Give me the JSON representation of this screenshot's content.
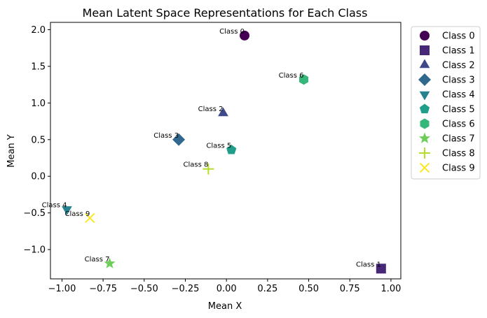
{
  "chart_data": {
    "type": "scatter",
    "title": "Mean Latent Space Representations for Each Class",
    "xlabel": "Mean X",
    "ylabel": "Mean Y",
    "xlim": [
      -1.07,
      1.06
    ],
    "ylim": [
      -1.4,
      2.1
    ],
    "xticks": [
      -1.0,
      -0.75,
      -0.5,
      -0.25,
      0.0,
      0.25,
      0.5,
      0.75,
      1.0
    ],
    "xtick_labels": [
      "−1.00",
      "−0.75",
      "−0.50",
      "−0.25",
      "0.00",
      "0.25",
      "0.50",
      "0.75",
      "1.00"
    ],
    "yticks": [
      -1.0,
      -0.5,
      0.0,
      0.5,
      1.0,
      1.5,
      2.0
    ],
    "ytick_labels": [
      "−1.0",
      "−0.5",
      "0.0",
      "0.5",
      "1.0",
      "1.5",
      "2.0"
    ],
    "grid": false,
    "legend_position": "outside-right",
    "series": [
      {
        "name": "Class 0",
        "x": 0.11,
        "y": 1.92,
        "marker": "circle",
        "color": "#440154"
      },
      {
        "name": "Class 1",
        "x": 0.94,
        "y": -1.26,
        "marker": "square",
        "color": "#482878"
      },
      {
        "name": "Class 2",
        "x": -0.02,
        "y": 0.86,
        "marker": "triangle-up",
        "color": "#3e4989"
      },
      {
        "name": "Class 3",
        "x": -0.29,
        "y": 0.5,
        "marker": "diamond",
        "color": "#31688e"
      },
      {
        "name": "Class 4",
        "x": -0.97,
        "y": -0.45,
        "marker": "triangle-down",
        "color": "#26828e"
      },
      {
        "name": "Class 5",
        "x": 0.03,
        "y": 0.36,
        "marker": "pentagon",
        "color": "#1f9e89"
      },
      {
        "name": "Class 6",
        "x": 0.47,
        "y": 1.32,
        "marker": "hexagon",
        "color": "#35b779"
      },
      {
        "name": "Class 7",
        "x": -0.71,
        "y": -1.19,
        "marker": "star",
        "color": "#6ece58"
      },
      {
        "name": "Class 8",
        "x": -0.11,
        "y": 0.1,
        "marker": "plus",
        "color": "#b5de2b"
      },
      {
        "name": "Class 9",
        "x": -0.83,
        "y": -0.57,
        "marker": "x",
        "color": "#fde725"
      }
    ]
  }
}
